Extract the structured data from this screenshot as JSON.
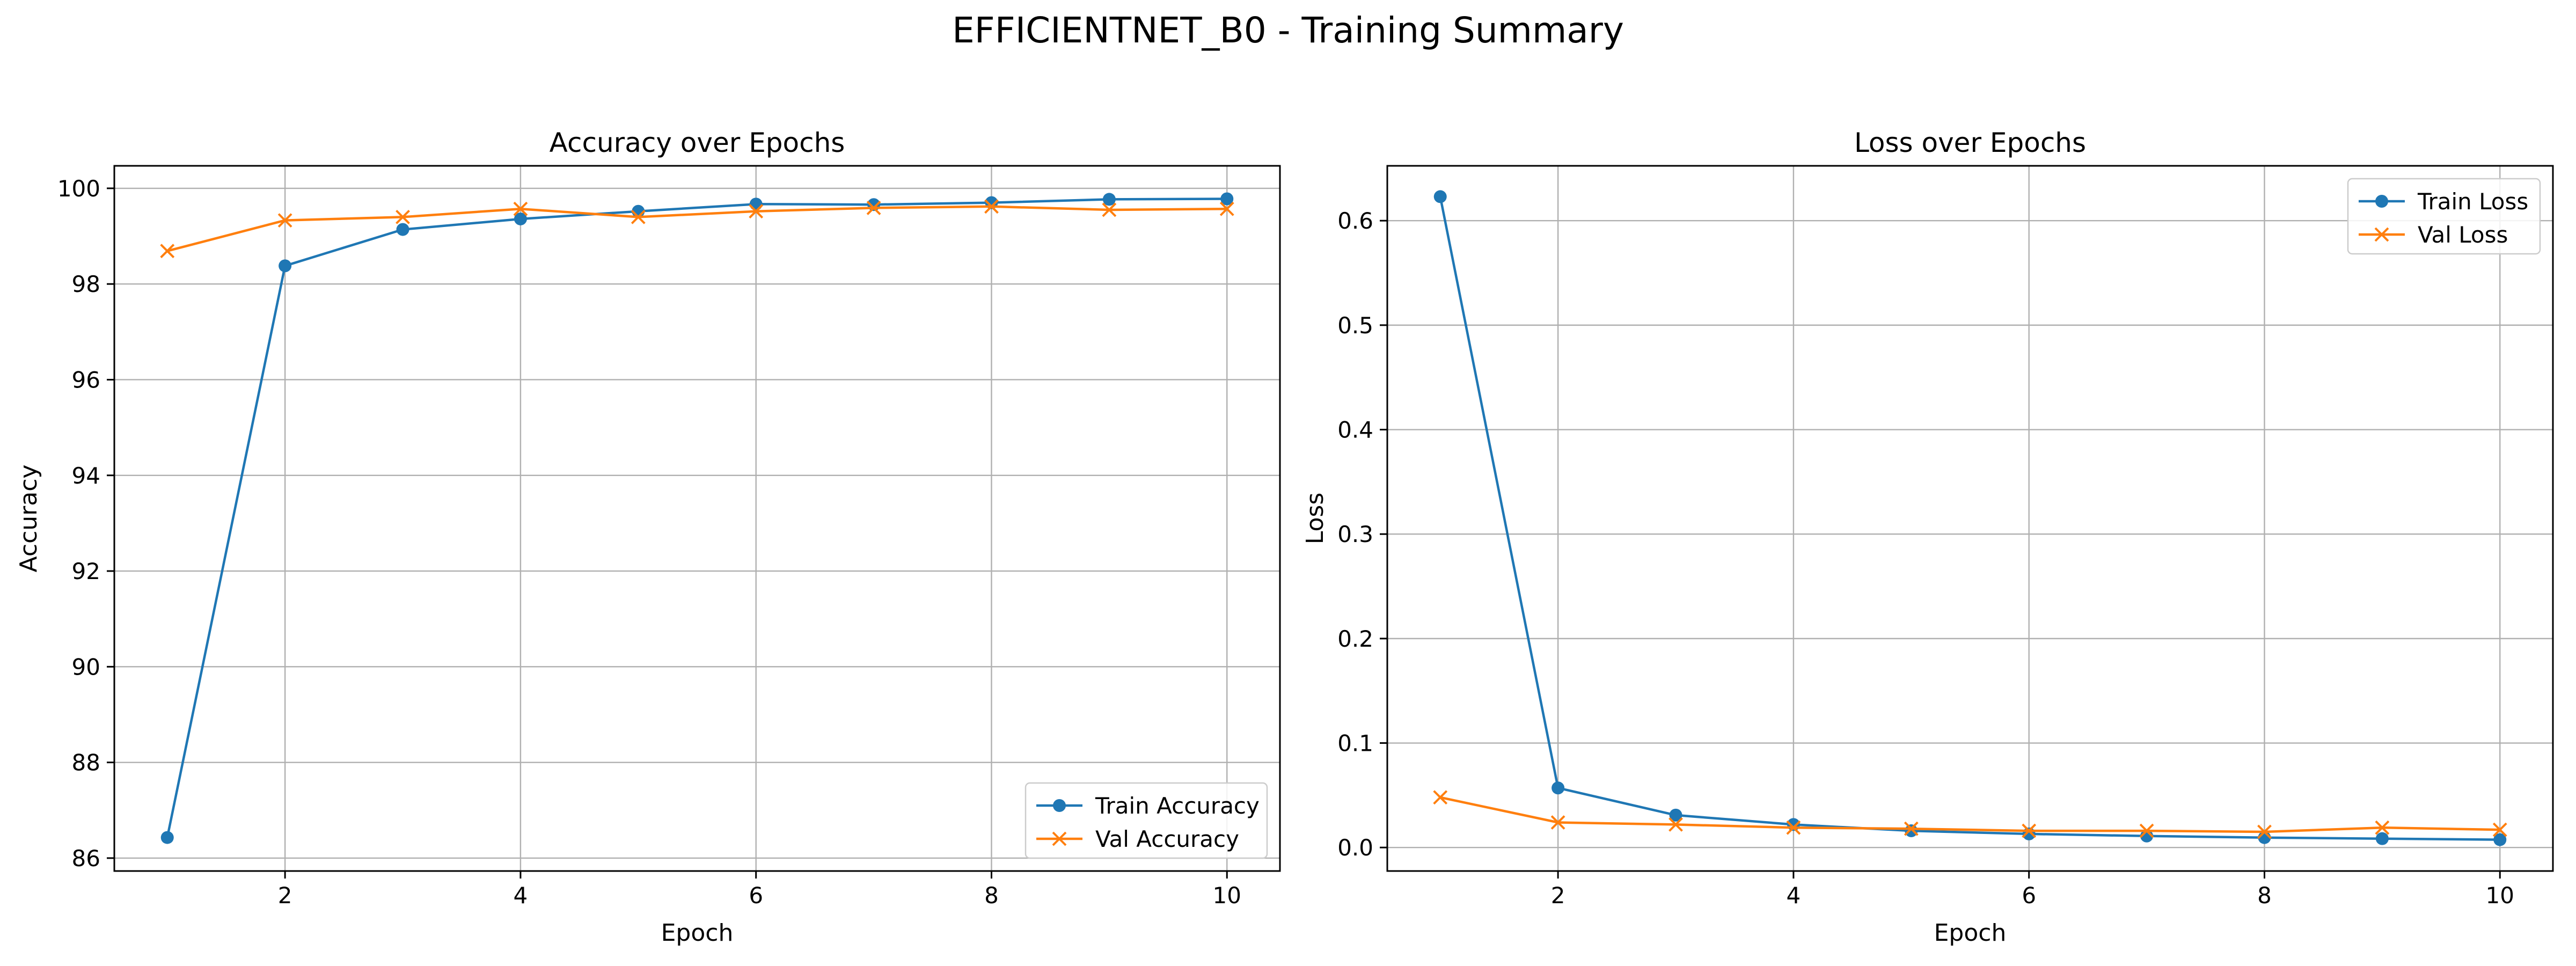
{
  "figure": {
    "title": "EFFICIENTNET_B0 - Training Summary"
  },
  "colors": {
    "train": "#1f77b4",
    "val": "#ff7f0e",
    "grid": "#b0b0b0",
    "axes": "#000000"
  },
  "chart_data": [
    {
      "type": "line",
      "title": "Accuracy over Epochs",
      "xlabel": "Epoch",
      "ylabel": "Accuracy",
      "x": [
        1,
        2,
        3,
        4,
        5,
        6,
        7,
        8,
        9,
        10
      ],
      "xticks": [
        2,
        4,
        6,
        8,
        10
      ],
      "yticks": [
        86,
        88,
        90,
        92,
        94,
        96,
        98,
        100
      ],
      "xlim": [
        0.55,
        10.45
      ],
      "ylim": [
        85.73,
        100.47
      ],
      "grid": true,
      "legend_position": "lower-right",
      "series": [
        {
          "name": "Train Accuracy",
          "marker": "circle",
          "values": [
            86.43,
            98.38,
            99.14,
            99.36,
            99.52,
            99.67,
            99.66,
            99.7,
            99.77,
            99.78
          ]
        },
        {
          "name": "Val Accuracy",
          "marker": "x",
          "values": [
            98.69,
            99.33,
            99.4,
            99.57,
            99.4,
            99.52,
            99.59,
            99.62,
            99.55,
            99.57
          ]
        }
      ]
    },
    {
      "type": "line",
      "title": "Loss over Epochs",
      "xlabel": "Epoch",
      "ylabel": "Loss",
      "x": [
        1,
        2,
        3,
        4,
        5,
        6,
        7,
        8,
        9,
        10
      ],
      "xticks": [
        2,
        4,
        6,
        8,
        10
      ],
      "yticks": [
        0.0,
        0.1,
        0.2,
        0.3,
        0.4,
        0.5,
        0.6
      ],
      "yticklabels": [
        "0.0",
        "0.1",
        "0.2",
        "0.3",
        "0.4",
        "0.5",
        "0.6"
      ],
      "xlim": [
        0.55,
        10.45
      ],
      "ylim": [
        -0.0225,
        0.6525
      ],
      "grid": true,
      "legend_position": "upper-right",
      "series": [
        {
          "name": "Train Loss",
          "marker": "circle",
          "values": [
            0.623,
            0.057,
            0.031,
            0.022,
            0.016,
            0.013,
            0.011,
            0.0095,
            0.0085,
            0.0075
          ]
        },
        {
          "name": "Val Loss",
          "marker": "x",
          "values": [
            0.048,
            0.024,
            0.022,
            0.019,
            0.018,
            0.016,
            0.016,
            0.015,
            0.019,
            0.017
          ]
        }
      ]
    }
  ]
}
